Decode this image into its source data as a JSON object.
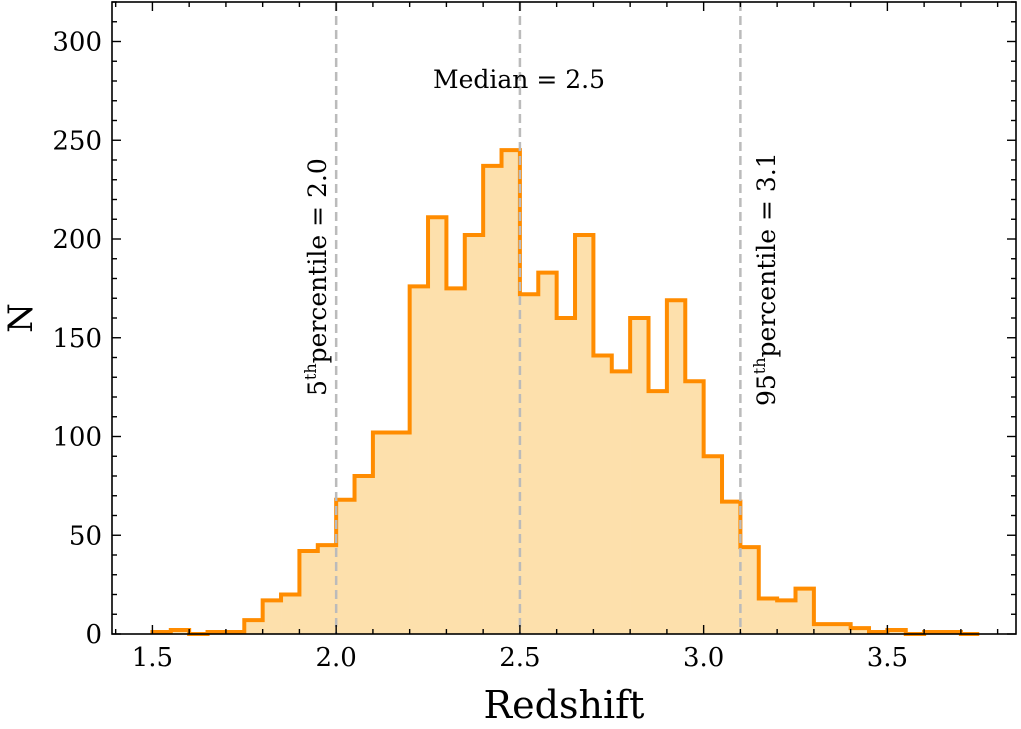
{
  "chart_data": {
    "type": "bar",
    "subtype": "step-histogram",
    "title": "",
    "xlabel": "Redshift",
    "ylabel": "N",
    "xlim": [
      1.39,
      3.85
    ],
    "ylim": [
      0,
      320
    ],
    "xticks": [
      "1.5",
      "2.0",
      "2.5",
      "3.0",
      "3.5"
    ],
    "xtick_values": [
      1.5,
      2.0,
      2.5,
      3.0,
      3.5
    ],
    "yticks": [
      "0",
      "50",
      "100",
      "150",
      "200",
      "250",
      "300"
    ],
    "ytick_values": [
      0,
      50,
      100,
      150,
      200,
      250,
      300
    ],
    "grid": false,
    "bin_start": 1.5,
    "bin_width": 0.05,
    "values": [
      1,
      2,
      0,
      1,
      1,
      7,
      17,
      20,
      42,
      45,
      68,
      80,
      102,
      102,
      176,
      211,
      175,
      202,
      237,
      245,
      172,
      183,
      160,
      202,
      141,
      133,
      160,
      123,
      169,
      128,
      90,
      67,
      44,
      18,
      17,
      23,
      5,
      5,
      3,
      1,
      2,
      0,
      1,
      1,
      0
    ],
    "colors": {
      "edge": "#ff8c00",
      "fill": "#fde0ac",
      "vline": "#bbbbbb"
    },
    "annotations": [
      {
        "x": 2.0,
        "label_base": "5",
        "label_sup": "th",
        "label_rest": "percentile = 2.0"
      },
      {
        "x": 2.5,
        "label": "Median = 2.5"
      },
      {
        "x": 3.1,
        "label_base": "95",
        "label_sup": "th",
        "label_rest": "percentile = 3.1"
      }
    ]
  }
}
